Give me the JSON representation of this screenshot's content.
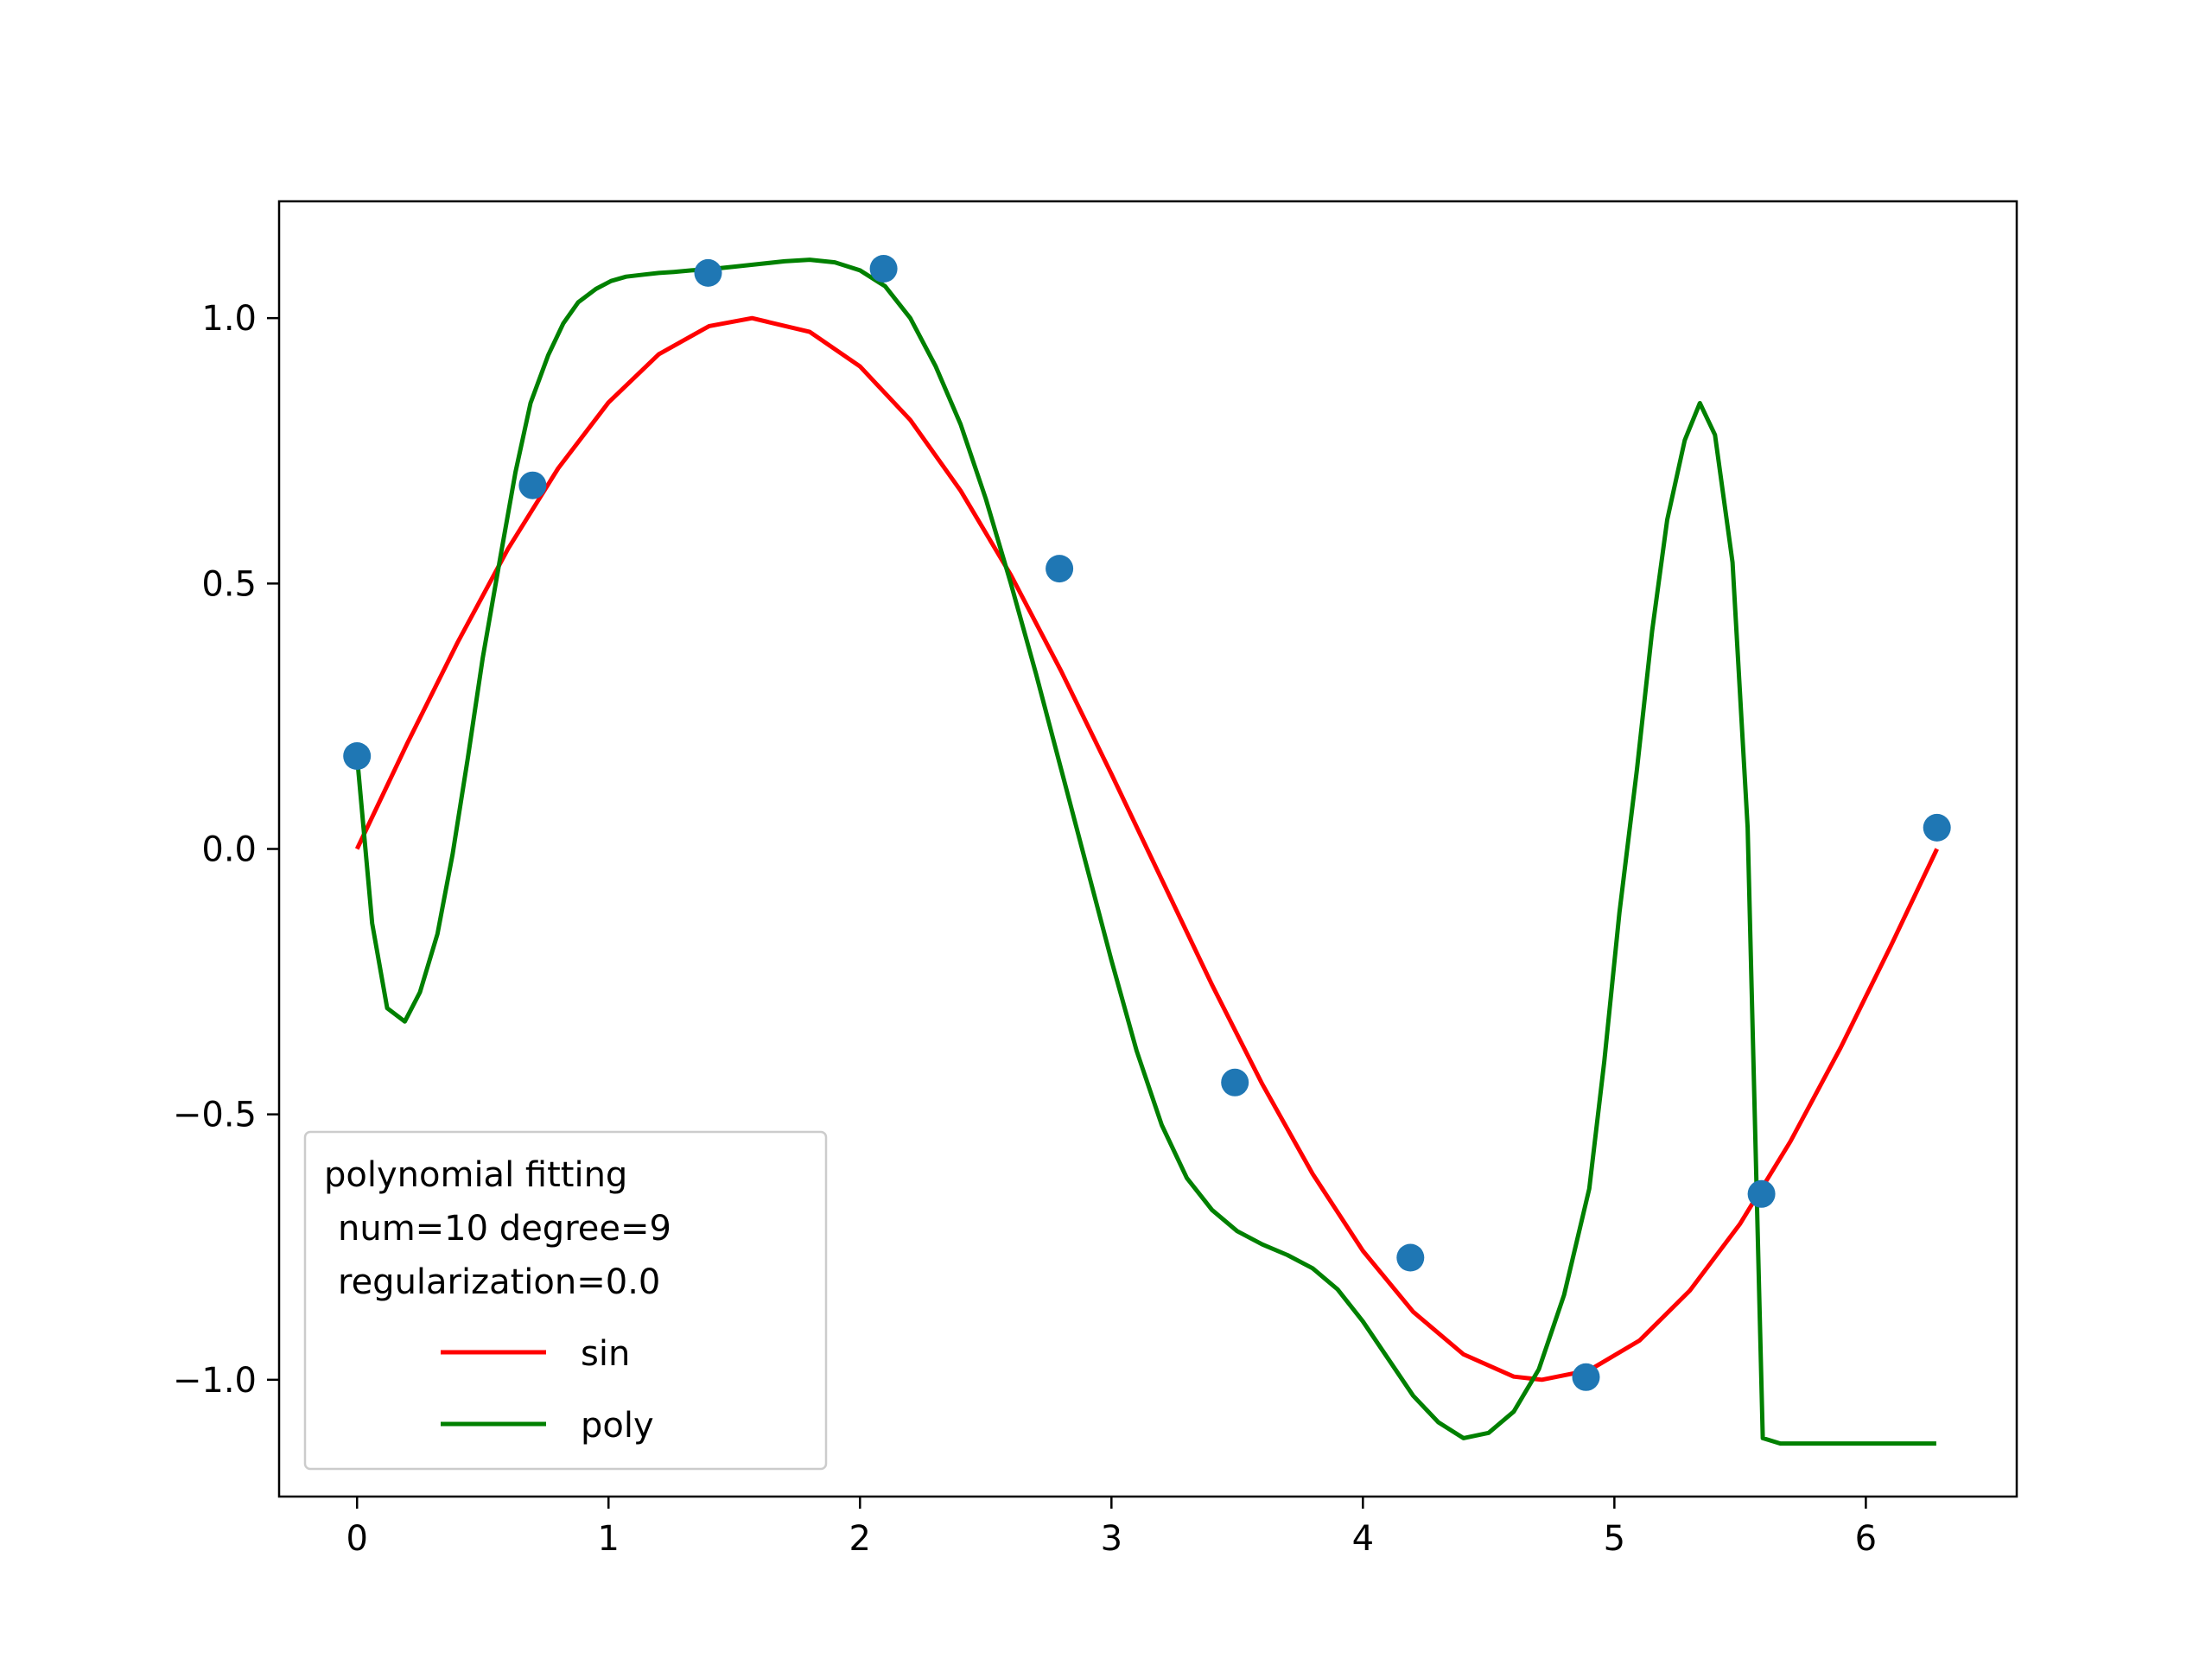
{
  "colors": {
    "sin": "#ff0000",
    "poly": "#008000",
    "points": "#1f77b4",
    "axes": "#000000",
    "background": "#ffffff",
    "legend_border": "#cccccc"
  },
  "chart_data": {
    "type": "line",
    "title": "",
    "xlabel": "",
    "ylabel": "",
    "xlim": [
      -0.31,
      6.6
    ],
    "ylim": [
      -1.22,
      1.22
    ],
    "grid": false,
    "xticks": [
      0,
      1,
      2,
      3,
      4,
      5,
      6
    ],
    "xtick_labels": [
      "0",
      "1",
      "2",
      "3",
      "4",
      "5",
      "6"
    ],
    "yticks": [
      1.0,
      0.5,
      0.0,
      -0.5,
      -1.0
    ],
    "ytick_labels": [
      "1.0",
      "0.5",
      "0.0",
      "−0.5",
      "−1.0"
    ],
    "legend": {
      "placement": "lower-left",
      "title_lines": [
        "polynomial fitting",
        "num=10 degree=9",
        "regularization=0.0"
      ]
    },
    "series": [
      {
        "name": "sin",
        "kind": "line",
        "color": "#ff0000",
        "x": [
          0.0,
          0.2,
          0.4,
          0.6,
          0.8,
          1.0,
          1.2,
          1.4,
          1.571,
          1.8,
          2.0,
          2.2,
          2.4,
          2.6,
          2.8,
          3.0,
          3.142,
          3.4,
          3.6,
          3.8,
          4.0,
          4.2,
          4.4,
          4.6,
          4.712,
          4.9,
          5.1,
          5.3,
          5.5,
          5.7,
          5.9,
          6.1,
          6.283
        ],
        "y": [
          0.0,
          0.199,
          0.389,
          0.565,
          0.717,
          0.841,
          0.932,
          0.985,
          1.0,
          0.974,
          0.909,
          0.808,
          0.675,
          0.516,
          0.335,
          0.141,
          0.0,
          -0.256,
          -0.443,
          -0.612,
          -0.757,
          -0.872,
          -0.952,
          -0.994,
          -1.0,
          -0.982,
          -0.926,
          -0.832,
          -0.706,
          -0.551,
          -0.374,
          -0.182,
          0.0
        ]
      },
      {
        "name": "poly",
        "kind": "line",
        "color": "#008000",
        "x": [
          0.0,
          0.06,
          0.12,
          0.19,
          0.25,
          0.32,
          0.38,
          0.44,
          0.5,
          0.57,
          0.63,
          0.69,
          0.76,
          0.82,
          0.88,
          0.95,
          1.01,
          1.07,
          1.14,
          1.2,
          1.26,
          1.33,
          1.4,
          1.5,
          1.6,
          1.7,
          1.8,
          1.9,
          2.0,
          2.1,
          2.2,
          2.3,
          2.4,
          2.5,
          2.6,
          2.7,
          2.8,
          2.9,
          3.0,
          3.1,
          3.2,
          3.3,
          3.4,
          3.5,
          3.6,
          3.7,
          3.8,
          3.9,
          4.0,
          4.1,
          4.2,
          4.3,
          4.4,
          4.5,
          4.6,
          4.7,
          4.8,
          4.9,
          4.96,
          5.02,
          5.09,
          5.15,
          5.21,
          5.28,
          5.34,
          5.4,
          5.47,
          5.53,
          5.59,
          5.66,
          5.72,
          5.78,
          5.84,
          5.91,
          5.97,
          6.03,
          6.09,
          6.16,
          6.22,
          6.28
        ],
        "y": [
          0.175,
          -0.14,
          -0.3,
          -0.325,
          -0.27,
          -0.16,
          -0.01,
          0.17,
          0.36,
          0.55,
          0.71,
          0.84,
          0.93,
          0.99,
          1.03,
          1.055,
          1.07,
          1.078,
          1.082,
          1.085,
          1.087,
          1.09,
          1.092,
          1.097,
          1.102,
          1.107,
          1.11,
          1.105,
          1.09,
          1.06,
          1.0,
          0.91,
          0.8,
          0.66,
          0.5,
          0.33,
          0.15,
          -0.03,
          -0.21,
          -0.38,
          -0.52,
          -0.62,
          -0.68,
          -0.72,
          -0.745,
          -0.765,
          -0.79,
          -0.83,
          -0.89,
          -0.96,
          -1.03,
          -1.08,
          -1.11,
          -1.1,
          -1.06,
          -0.98,
          -0.84,
          -0.64,
          -0.4,
          -0.12,
          0.15,
          0.41,
          0.62,
          0.77,
          0.84,
          0.78,
          0.54,
          0.04,
          -1.11,
          -1.12,
          -1.12,
          -1.12,
          -1.12,
          -1.12,
          -1.12,
          -1.12,
          -1.12,
          -1.12,
          -1.12,
          -1.12
        ]
      },
      {
        "name": "",
        "kind": "scatter",
        "color": "#1f77b4",
        "x": [
          0.0,
          0.698,
          1.396,
          2.094,
          2.793,
          3.491,
          4.189,
          4.887,
          5.585,
          6.283
        ],
        "y": [
          0.175,
          0.685,
          1.085,
          1.093,
          0.528,
          -0.44,
          -0.77,
          -0.995,
          -0.65,
          0.04
        ]
      }
    ]
  }
}
